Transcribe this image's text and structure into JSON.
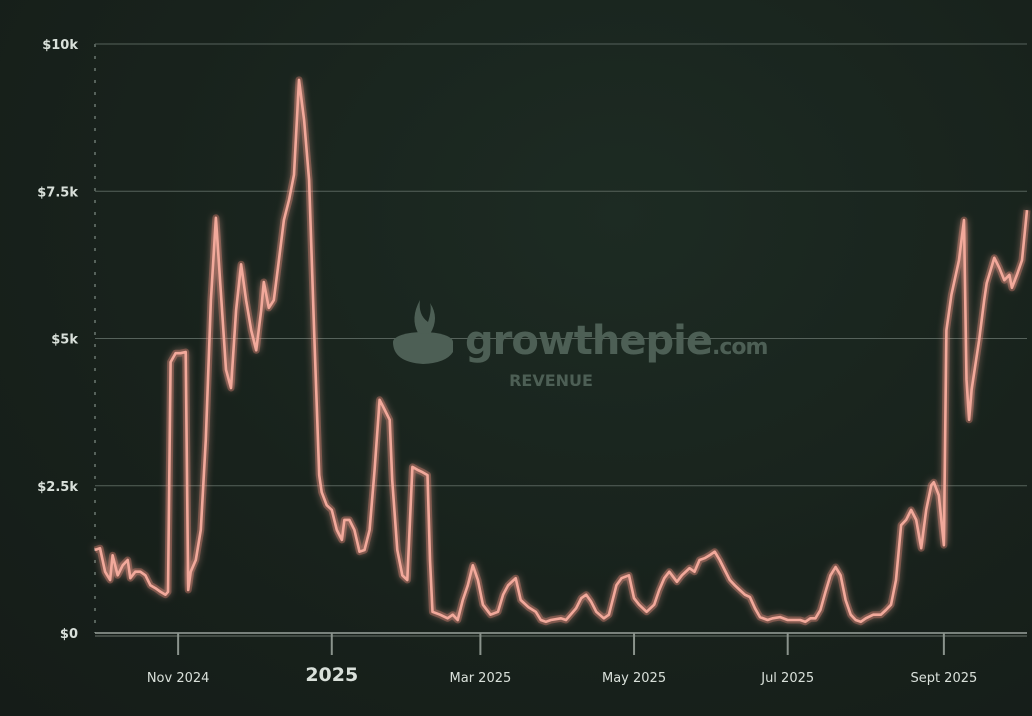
{
  "watermark": {
    "brand": "growthepie",
    "brand_suffix": ".com",
    "metric": "REVENUE"
  },
  "colors": {
    "line": "#f2a99b",
    "glow": "#e8806f",
    "grid": "#56625b",
    "text": "#d9e0da"
  },
  "chart_data": {
    "type": "line",
    "title": "REVENUE",
    "xlabel": "",
    "ylabel": "",
    "start_date": "2024-09-29",
    "x_unit": "days since start_date",
    "xlim": [
      0,
      370
    ],
    "ylim": [
      0,
      10
    ],
    "y_unit": "$k",
    "grid": true,
    "yticks": [
      {
        "value": 0,
        "label": "$0"
      },
      {
        "value": 2.5,
        "label": "$2.5k"
      },
      {
        "value": 5,
        "label": "$5k"
      },
      {
        "value": 7.5,
        "label": "$7.5k"
      },
      {
        "value": 10,
        "label": "$10k"
      }
    ],
    "xticks": [
      {
        "value": 33,
        "label": "Nov 2024",
        "emphasis": false
      },
      {
        "value": 94,
        "label": "2025",
        "emphasis": true
      },
      {
        "value": 153,
        "label": "Mar 2025",
        "emphasis": false
      },
      {
        "value": 214,
        "label": "May 2025",
        "emphasis": false
      },
      {
        "value": 275,
        "label": "Jul 2025",
        "emphasis": false
      },
      {
        "value": 337,
        "label": "Sept 2025",
        "emphasis": false
      }
    ],
    "series": [
      {
        "name": "Revenue",
        "x": [
          0,
          2,
          4,
          6,
          7,
          9,
          11,
          13,
          14,
          16,
          18,
          20,
          22,
          24,
          26,
          28,
          29,
          30,
          32,
          34,
          36,
          37,
          38,
          40,
          42,
          44,
          46,
          48,
          50,
          52,
          54,
          56,
          58,
          60,
          62,
          64,
          66,
          67,
          69,
          71,
          73,
          75,
          77,
          79,
          81,
          83,
          85,
          87,
          89,
          90,
          92,
          94,
          96,
          98,
          99,
          101,
          103,
          105,
          107,
          109,
          111,
          113,
          115,
          117,
          118,
          120,
          122,
          124,
          126,
          128,
          130,
          132,
          133,
          134,
          137,
          140,
          142,
          144,
          146,
          148,
          150,
          152,
          154,
          157,
          160,
          162,
          164,
          167,
          169,
          172,
          175,
          177,
          179,
          181,
          185,
          187,
          191,
          193,
          195,
          197,
          199,
          202,
          204,
          207,
          209,
          212,
          214,
          216,
          219,
          222,
          224,
          226,
          228,
          231,
          233,
          236,
          238,
          240,
          242,
          244,
          246,
          248,
          250,
          252,
          254,
          256,
          258,
          260,
          262,
          264,
          267,
          269,
          272,
          275,
          278,
          280,
          282,
          284,
          286,
          288,
          290,
          292,
          294,
          296,
          298,
          300,
          302,
          304,
          306,
          309,
          312,
          314,
          316,
          318,
          320,
          322,
          324,
          326,
          328,
          330,
          332,
          333,
          335,
          337,
          338,
          340,
          343,
          345,
          346,
          347,
          348,
          351,
          353,
          354,
          355,
          357,
          359,
          361,
          363,
          364,
          366,
          368,
          370
        ],
        "values": [
          1.41,
          1.44,
          1.04,
          0.9,
          1.32,
          0.98,
          1.15,
          1.24,
          0.93,
          1.04,
          1.04,
          0.98,
          0.81,
          0.76,
          0.7,
          0.65,
          0.7,
          4.6,
          4.75,
          4.75,
          4.77,
          0.73,
          1.04,
          1.24,
          1.75,
          3.28,
          5.65,
          7.05,
          5.77,
          4.47,
          4.16,
          5.48,
          6.26,
          5.65,
          5.14,
          4.8,
          5.48,
          5.96,
          5.52,
          5.65,
          6.33,
          7.01,
          7.35,
          7.78,
          9.39,
          8.71,
          7.69,
          5.14,
          2.68,
          2.39,
          2.17,
          2.09,
          1.75,
          1.58,
          1.92,
          1.92,
          1.75,
          1.38,
          1.41,
          1.75,
          2.77,
          3.96,
          3.79,
          3.62,
          2.6,
          1.41,
          0.98,
          0.9,
          2.82,
          2.77,
          2.73,
          2.68,
          1.24,
          0.36,
          0.31,
          0.25,
          0.31,
          0.22,
          0.56,
          0.81,
          1.15,
          0.9,
          0.48,
          0.31,
          0.36,
          0.65,
          0.81,
          0.93,
          0.56,
          0.44,
          0.36,
          0.22,
          0.19,
          0.22,
          0.25,
          0.22,
          0.42,
          0.59,
          0.65,
          0.53,
          0.36,
          0.25,
          0.31,
          0.81,
          0.93,
          0.98,
          0.59,
          0.48,
          0.36,
          0.48,
          0.73,
          0.93,
          1.04,
          0.87,
          0.98,
          1.1,
          1.04,
          1.24,
          1.27,
          1.32,
          1.38,
          1.24,
          1.07,
          0.9,
          0.81,
          0.73,
          0.65,
          0.61,
          0.42,
          0.27,
          0.22,
          0.25,
          0.27,
          0.22,
          0.22,
          0.22,
          0.19,
          0.25,
          0.25,
          0.39,
          0.7,
          0.98,
          1.12,
          0.98,
          0.56,
          0.31,
          0.22,
          0.19,
          0.25,
          0.31,
          0.31,
          0.39,
          0.48,
          0.9,
          1.83,
          1.92,
          2.09,
          1.92,
          1.44,
          2.09,
          2.51,
          2.56,
          2.34,
          1.49,
          5.14,
          5.74,
          6.33,
          7.01,
          4.3,
          3.62,
          4.13,
          4.97,
          5.65,
          5.94,
          6.08,
          6.37,
          6.2,
          5.99,
          6.08,
          5.86,
          6.08,
          6.33,
          7.18
        ]
      }
    ]
  }
}
